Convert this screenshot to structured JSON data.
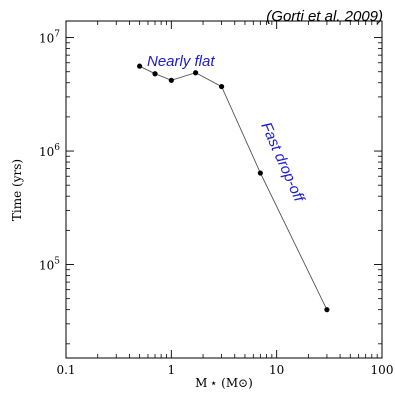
{
  "citation": "(Gorti et al. 2009)",
  "chart_data": {
    "type": "line",
    "xscale": "log",
    "yscale": "log",
    "xlim": [
      0.1,
      100
    ],
    "ylim": [
      15000,
      14000000
    ],
    "xlabel": "M ⋆ (M⊙)",
    "ylabel": "Time (yrs)",
    "xticks": [
      {
        "value": 0.1,
        "label": "0.1"
      },
      {
        "value": 1,
        "label": "1"
      },
      {
        "value": 10,
        "label": "10"
      },
      {
        "value": 100,
        "label": "100"
      }
    ],
    "yticks": [
      {
        "value": 100000,
        "base": "10",
        "exp": "5"
      },
      {
        "value": 1000000,
        "base": "10",
        "exp": "6"
      },
      {
        "value": 10000000,
        "base": "10",
        "exp": "7"
      }
    ],
    "x": [
      0.5,
      0.7,
      1.0,
      1.7,
      3.0,
      7.0,
      30.0
    ],
    "y": [
      5600000,
      4800000,
      4200000,
      4900000,
      3700000,
      640000,
      40000
    ],
    "annotations": [
      {
        "text": "Nearly flat",
        "color": "#1a1ad6"
      },
      {
        "text": "Fast drop-off",
        "color": "#1a1ad6"
      }
    ],
    "line_color": "#555555",
    "marker_color": "#000000"
  }
}
